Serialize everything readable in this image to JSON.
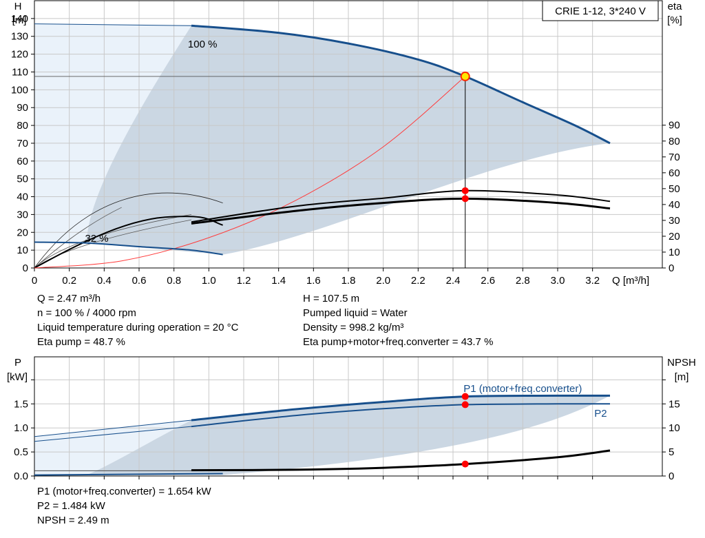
{
  "model_label": "CRIE 1-12, 3*240 V",
  "top_chart": {
    "y_left_label": [
      "H",
      "[m]"
    ],
    "y_right_label": [
      "eta",
      "[%]"
    ],
    "x_label": "Q [m³/h]",
    "x_ticks": [
      "0",
      "0.2",
      "0.4",
      "0.6",
      "0.8",
      "1.0",
      "1.2",
      "1.4",
      "1.6",
      "1.8",
      "2.0",
      "2.2",
      "2.4",
      "2.6",
      "2.8",
      "3.0",
      "3.2"
    ],
    "y_left_ticks": [
      "0",
      "10",
      "20",
      "30",
      "40",
      "50",
      "60",
      "70",
      "80",
      "90",
      "100",
      "110",
      "120",
      "130",
      "140"
    ],
    "y_right_ticks": [
      "0",
      "10",
      "20",
      "30",
      "40",
      "50",
      "60",
      "70",
      "80",
      "90"
    ],
    "speed_max_label": "100 %",
    "speed_min_label": "32 %"
  },
  "bottom_chart": {
    "y_left_label": [
      "P",
      "[kW]"
    ],
    "y_right_label": [
      "NPSH",
      "[m]"
    ],
    "y_left_ticks": [
      "0.0",
      "0.5",
      "1.0",
      "1.5"
    ],
    "y_right_ticks": [
      "0",
      "5",
      "10",
      "15"
    ],
    "p1_label": "P1 (motor+freq.converter)",
    "p2_label": "P2"
  },
  "info_top": {
    "left": [
      "Q = 2.47 m³/h",
      "n = 100 % / 4000 rpm",
      "Liquid temperature during operation = 20 °C",
      "Eta pump = 48.7 %"
    ],
    "right": [
      "H = 107.5 m",
      "Pumped liquid = Water",
      "Density = 998.2 kg/m³",
      "Eta pump+motor+freq.converter = 43.7 %"
    ]
  },
  "info_bottom": [
    "P1 (motor+freq.converter) = 1.654 kW",
    "P2 = 1.484 kW",
    "NPSH = 2.49 m"
  ],
  "colors": {
    "curve_blue": "#174f8c",
    "band_fill": "#cbd7e3",
    "light_fill": "#eaf2fa",
    "grid": "#c8c8c8",
    "marker": "#ff0000",
    "system_curve": "#ff3b3b"
  },
  "chart_data": [
    {
      "type": "line",
      "title": "",
      "xlabel": "Q [m³/h]",
      "ylabel": "H [m]",
      "y2label": "eta [%]",
      "xlim": [
        0,
        3.6
      ],
      "ylim": [
        0,
        150
      ],
      "y2lim": [
        0,
        100
      ],
      "grid": true,
      "series": [
        {
          "name": "100 %",
          "axis": "H",
          "x": [
            0,
            0.9,
            1.4,
            1.8,
            2.2,
            2.47,
            2.8,
            3.1,
            3.3
          ],
          "y": [
            137,
            136,
            132,
            126,
            117,
            107.5,
            93,
            80,
            70
          ]
        },
        {
          "name": "32 %",
          "axis": "H",
          "x": [
            0,
            0.3,
            0.6,
            0.9,
            1.08
          ],
          "y": [
            14.5,
            14,
            12,
            10,
            7.5
          ]
        },
        {
          "axis": "eta",
          "x": [
            0.9,
            1.5,
            2.0,
            2.47,
            3.0,
            3.3
          ],
          "y": [
            29,
            39,
            44,
            48.7,
            46,
            42
          ]
        },
        {
          "axis": "eta",
          "x": [
            0.9,
            1.5,
            2.0,
            2.47,
            3.0,
            3.3
          ],
          "y": [
            28,
            36,
            41,
            43.7,
            41,
            37.5
          ]
        },
        {
          "axis": "H",
          "x": [
            0,
            0.5,
            1.0,
            1.5,
            2.0,
            2.47
          ],
          "y": [
            0,
            4,
            17,
            38,
            68,
            107.5
          ]
        }
      ],
      "duty_point": {
        "Q": 2.47,
        "H": 107.5,
        "eta_pump": 48.7,
        "eta_total": 43.7
      }
    },
    {
      "type": "line",
      "title": "",
      "xlabel": "Q [m³/h]",
      "ylabel": "P [kW]",
      "y2label": "NPSH [m]",
      "xlim": [
        0,
        3.6
      ],
      "ylim": [
        0,
        2.0
      ],
      "y2lim": [
        0,
        20
      ],
      "grid": true,
      "series": [
        {
          "name": "P1 (motor+freq.converter)",
          "axis": "P",
          "x": [
            0.9,
            1.5,
            2.0,
            2.47,
            3.0,
            3.3
          ],
          "y": [
            1.16,
            1.39,
            1.54,
            1.654,
            1.67,
            1.67
          ]
        },
        {
          "name": "P2",
          "axis": "P",
          "x": [
            0.9,
            1.5,
            2.0,
            2.47,
            3.0,
            3.3
          ],
          "y": [
            1.03,
            1.26,
            1.4,
            1.484,
            1.5,
            1.5
          ]
        },
        {
          "axis": "NPSH",
          "x": [
            0.9,
            1.5,
            2.0,
            2.47,
            3.0,
            3.3
          ],
          "y": [
            1.2,
            1.3,
            1.7,
            2.49,
            3.9,
            5.3
          ]
        }
      ],
      "duty_point": {
        "Q": 2.47,
        "P1": 1.654,
        "P2": 1.484,
        "NPSH": 2.49
      }
    }
  ]
}
